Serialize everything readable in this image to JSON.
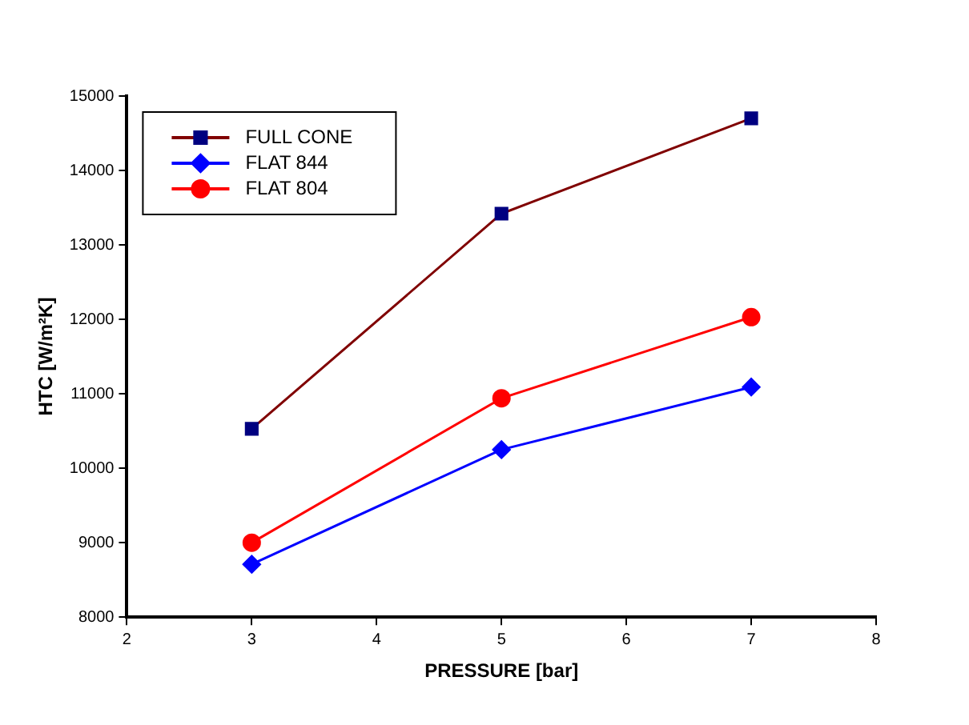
{
  "chart_data": {
    "type": "line",
    "xlabel": "PRESSURE [bar]",
    "ylabel": "HTC [W/m²K]",
    "x": [
      3,
      5,
      7
    ],
    "series": [
      {
        "name": "FULL CONE",
        "color": "#800000",
        "colors": [
          "#000080",
          "#000080",
          "#000080"
        ],
        "marker": "square",
        "values": [
          10530,
          13420,
          14700
        ]
      },
      {
        "name": "FLAT 844",
        "color": "#0000ff",
        "marker": "diamond",
        "values": [
          8710,
          10250,
          11090
        ]
      },
      {
        "name": "FLAT 804",
        "color": "#ff0000",
        "marker": "circle",
        "values": [
          9000,
          10940,
          12030
        ]
      }
    ],
    "xlim": [
      2,
      8
    ],
    "xticks": [
      2,
      3,
      4,
      5,
      6,
      7,
      8
    ],
    "ylim": [
      8000,
      15000
    ],
    "yticks": [
      8000,
      9000,
      10000,
      11000,
      12000,
      13000,
      14000,
      15000
    ],
    "grid": false,
    "legend": "top left",
    "line_style": "solid"
  }
}
